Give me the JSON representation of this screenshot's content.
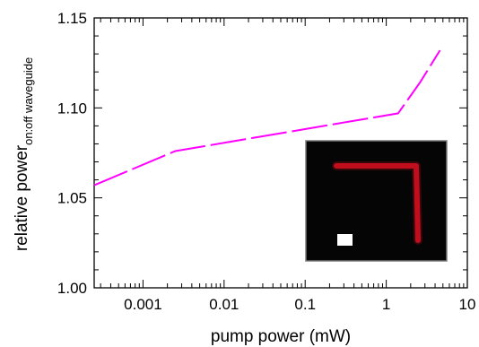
{
  "chart_data": {
    "type": "line",
    "title": "",
    "xlabel": "pump power (mW)",
    "ylabel": "relative power",
    "ylabel_subscript": "on:off waveguide",
    "x_scale": "log",
    "xlim": [
      0.00025,
      10
    ],
    "ylim": [
      1.0,
      1.15
    ],
    "x_ticks": [
      {
        "value": 0.001,
        "label": "0.001"
      },
      {
        "value": 0.01,
        "label": "0.01"
      },
      {
        "value": 0.1,
        "label": "0.1"
      },
      {
        "value": 1,
        "label": "1"
      },
      {
        "value": 10,
        "label": "10"
      }
    ],
    "y_ticks": [
      {
        "value": 1.0,
        "label": "1.00"
      },
      {
        "value": 1.05,
        "label": "1.05"
      },
      {
        "value": 1.1,
        "label": "1.10"
      },
      {
        "value": 1.15,
        "label": "1.15"
      }
    ],
    "grid": false,
    "line_color": "#ff00ff",
    "series": [
      {
        "x": [
          0.00025,
          0.0025,
          1.4,
          2.6,
          4.6
        ],
        "y": [
          1.057,
          1.076,
          1.097,
          1.114,
          1.132
        ]
      }
    ],
    "inset": {
      "description_icon": "microscope-image-inset",
      "background": "#050505",
      "trace_color": "#d01020",
      "scale_marker_color": "#ffffff"
    }
  }
}
